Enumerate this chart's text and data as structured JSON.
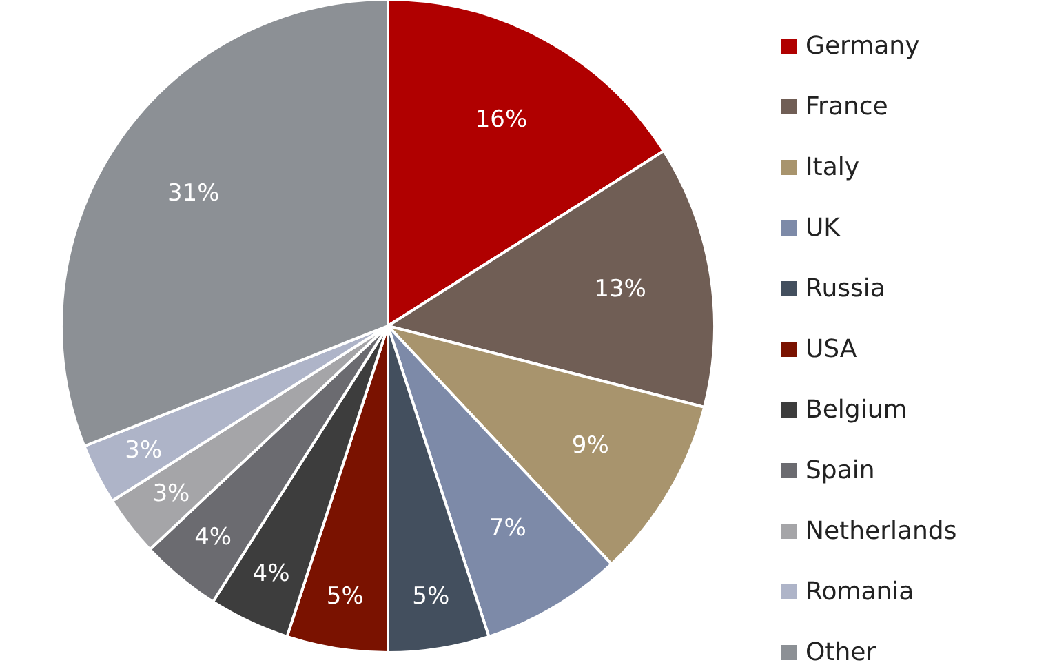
{
  "chart_data": {
    "type": "pie",
    "categories": [
      "Germany",
      "France",
      "Italy",
      "UK",
      "Russia",
      "USA",
      "Belgium",
      "Spain",
      "Netherlands",
      "Romania",
      "Other"
    ],
    "values": [
      16,
      13,
      9,
      7,
      5,
      5,
      4,
      4,
      3,
      3,
      31
    ],
    "value_labels": [
      "16%",
      "13%",
      "9%",
      "7%",
      "5%",
      "5%",
      "4%",
      "4%",
      "3%",
      "3%",
      "31%"
    ],
    "colors": [
      "#b00000",
      "#705e55",
      "#a8946d",
      "#7d8aa8",
      "#434f5e",
      "#7a1200",
      "#3d3d3d",
      "#6b6b70",
      "#a5a5a8",
      "#aeb4c8",
      "#8c9095"
    ],
    "legend": "right"
  }
}
